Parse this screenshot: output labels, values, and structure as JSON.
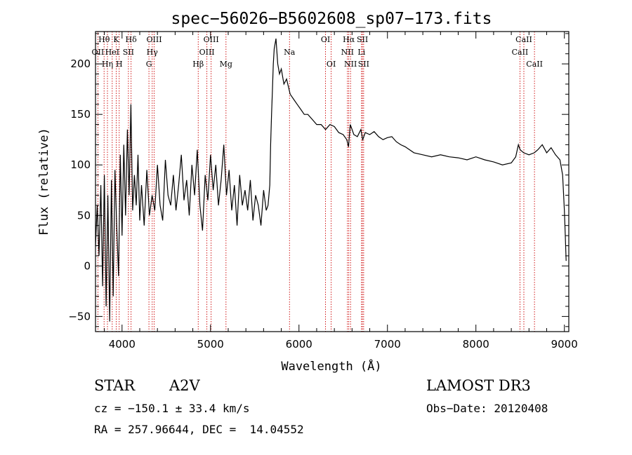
{
  "chart_data": {
    "type": "line",
    "title": "spec−56026−B5602608_sp07−173.fits",
    "xlabel": "Wavelength (Å)",
    "ylabel": "Flux (relative)",
    "xlim": [
      3700,
      9050
    ],
    "ylim": [
      -65,
      232
    ],
    "xticks": [
      4000,
      5000,
      6000,
      7000,
      8000,
      9000
    ],
    "xtick_labels": [
      "4000",
      "5000",
      "6000",
      "7000",
      "8000",
      "9000"
    ],
    "yticks": [
      -50,
      0,
      50,
      100,
      150,
      200
    ],
    "ytick_labels": [
      "−50",
      "0",
      "50",
      "100",
      "150",
      "200"
    ],
    "grid": false,
    "series": [
      {
        "x": [
          3700,
          3720,
          3740,
          3760,
          3780,
          3800,
          3820,
          3840,
          3860,
          3880,
          3900,
          3920,
          3940,
          3960,
          3980,
          4000,
          4020,
          4040,
          4060,
          4080,
          4100,
          4120,
          4140,
          4160,
          4180,
          4200,
          4220,
          4250,
          4280,
          4310,
          4340,
          4370,
          4400,
          4430,
          4460,
          4490,
          4520,
          4550,
          4580,
          4610,
          4640,
          4670,
          4700,
          4730,
          4760,
          4790,
          4820,
          4850,
          4880,
          4910,
          4940,
          4970,
          5000,
          5030,
          5060,
          5090,
          5120,
          5150,
          5180,
          5210,
          5240,
          5270,
          5300,
          5330,
          5360,
          5390,
          5420,
          5450,
          5480,
          5510,
          5540,
          5570,
          5600,
          5630,
          5650,
          5670,
          5680,
          5690,
          5700,
          5710,
          5720,
          5740,
          5760,
          5780,
          5800,
          5830,
          5860,
          5900,
          5940,
          5980,
          6020,
          6060,
          6100,
          6150,
          6200,
          6250,
          6300,
          6350,
          6400,
          6450,
          6500,
          6540,
          6560,
          6580,
          6620,
          6660,
          6700,
          6720,
          6750,
          6800,
          6850,
          6900,
          6950,
          7000,
          7050,
          7100,
          7150,
          7200,
          7300,
          7400,
          7500,
          7600,
          7700,
          7800,
          7900,
          8000,
          8100,
          8200,
          8300,
          8400,
          8450,
          8480,
          8500,
          8540,
          8600,
          8660,
          8700,
          8750,
          8800,
          8850,
          8900,
          8950,
          8980,
          9000,
          9010,
          9020
        ],
        "y": [
          20,
          60,
          10,
          80,
          -20,
          90,
          -40,
          70,
          -55,
          85,
          -30,
          95,
          40,
          -10,
          110,
          30,
          120,
          50,
          135,
          70,
          160,
          55,
          90,
          60,
          110,
          45,
          80,
          40,
          95,
          50,
          70,
          55,
          100,
          60,
          45,
          105,
          70,
          60,
          90,
          55,
          80,
          110,
          65,
          85,
          50,
          100,
          70,
          115,
          60,
          35,
          90,
          65,
          110,
          75,
          100,
          60,
          85,
          120,
          70,
          95,
          55,
          80,
          40,
          90,
          60,
          75,
          55,
          85,
          45,
          70,
          60,
          40,
          75,
          55,
          60,
          80,
          120,
          150,
          175,
          200,
          215,
          225,
          200,
          190,
          195,
          180,
          185,
          170,
          165,
          160,
          155,
          150,
          150,
          145,
          140,
          140,
          135,
          140,
          138,
          132,
          130,
          125,
          118,
          140,
          130,
          128,
          135,
          125,
          132,
          130,
          133,
          128,
          125,
          127,
          128,
          123,
          120,
          118,
          112,
          110,
          108,
          110,
          108,
          107,
          105,
          108,
          105,
          103,
          100,
          102,
          108,
          120,
          115,
          112,
          110,
          112,
          115,
          120,
          112,
          117,
          110,
          105,
          90,
          55,
          30,
          5
        ]
      }
    ],
    "line_labels": [
      {
        "wavelength": 3797,
        "label": "Hθ",
        "row": 0
      },
      {
        "wavelength": 3727,
        "label": "OII",
        "row": 1
      },
      {
        "wavelength": 3835,
        "label": "Hη",
        "row": 2
      },
      {
        "wavelength": 3889,
        "label": "HeI",
        "row": 1
      },
      {
        "wavelength": 3934,
        "label": "K",
        "row": 0
      },
      {
        "wavelength": 3968,
        "label": "H",
        "row": 2
      },
      {
        "wavelength": 4072,
        "label": "SII",
        "row": 1
      },
      {
        "wavelength": 4102,
        "label": "Hδ",
        "row": 0
      },
      {
        "wavelength": 4304,
        "label": "G",
        "row": 2
      },
      {
        "wavelength": 4341,
        "label": "Hγ",
        "row": 1
      },
      {
        "wavelength": 4363,
        "label": "OIII",
        "row": 0
      },
      {
        "wavelength": 4861,
        "label": "Hβ",
        "row": 2
      },
      {
        "wavelength": 4959,
        "label": "OIII",
        "row": 1
      },
      {
        "wavelength": 5007,
        "label": "OIII",
        "row": 0
      },
      {
        "wavelength": 5175,
        "label": "Mg",
        "row": 2
      },
      {
        "wavelength": 5893,
        "label": "Na",
        "row": 1
      },
      {
        "wavelength": 6300,
        "label": "OI",
        "row": 0
      },
      {
        "wavelength": 6364,
        "label": "OI",
        "row": 2
      },
      {
        "wavelength": 6548,
        "label": "NII",
        "row": 1
      },
      {
        "wavelength": 6563,
        "label": "Hα",
        "row": 0
      },
      {
        "wavelength": 6583,
        "label": "NII",
        "row": 2
      },
      {
        "wavelength": 6707,
        "label": "Li",
        "row": 1
      },
      {
        "wavelength": 6717,
        "label": "SII",
        "row": 0
      },
      {
        "wavelength": 6731,
        "label": "SII",
        "row": 2
      },
      {
        "wavelength": 8498,
        "label": "CaII",
        "row": 1
      },
      {
        "wavelength": 8542,
        "label": "CaII",
        "row": 0
      },
      {
        "wavelength": 8662,
        "label": "CaII",
        "row": 2
      }
    ],
    "line_marker_color": "#cc0000",
    "trace_color": "#000000"
  },
  "info": {
    "class": "STAR",
    "subclass": "A2V",
    "survey": "LAMOST DR3",
    "cz": "cz = −150.1 ± 33.4 km/s",
    "obs_date": "Obs−Date: 20120408",
    "coords": "RA = 257.96644, DEC =  14.04552"
  }
}
